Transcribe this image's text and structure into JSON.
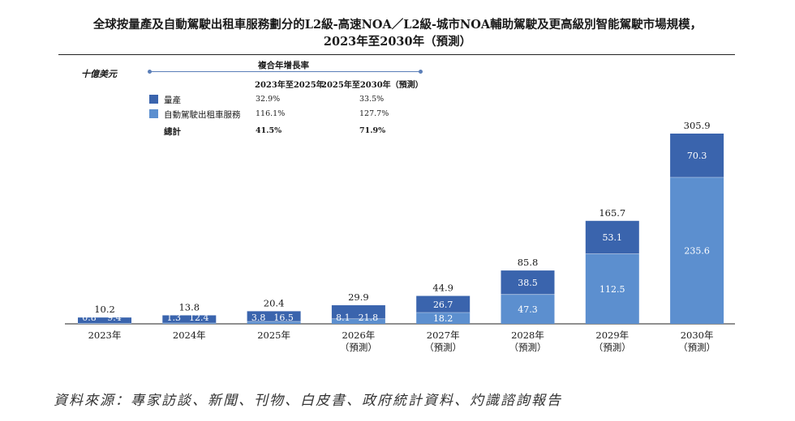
{
  "title_line1": "全球按量產及自動駕駛出租車服務劃分的L2級-高速NOA／L2級-城市NOA輔助駕駛及更高級別智能駕駛市場規模，",
  "title_line2": "2023年至2030年（預測）",
  "unit": "十億美元",
  "legend": {
    "cagr_header": "複合年增長率",
    "col1": "2023年至2025年",
    "col2": "2025年至2030年（預測）",
    "rows": [
      {
        "label": "量產",
        "color": "#3a64ad",
        "c1": "32.9%",
        "c2": "33.5%"
      },
      {
        "label": "自動駕駛出租車服務",
        "color": "#5c8fcf",
        "c1": "116.1%",
        "c2": "127.7%"
      }
    ],
    "total": {
      "label": "總計",
      "c1": "41.5%",
      "c2": "71.9%"
    }
  },
  "source": "資料來源：專家訪談、新聞、刊物、白皮書、政府統計資料、灼識諮詢報告",
  "chart_data": {
    "type": "bar",
    "stacked": true,
    "categories": [
      "2023年",
      "2024年",
      "2025年",
      "2026年\n（預測）",
      "2027年\n（預測）",
      "2028年\n（預測）",
      "2029年\n（預測）",
      "2030年\n（預測）"
    ],
    "series": [
      {
        "name": "自動駕駛出租車服務",
        "color": "#5c8fcf",
        "values": [
          0.8,
          1.3,
          3.8,
          8.1,
          18.2,
          47.3,
          112.5,
          235.6
        ]
      },
      {
        "name": "量產",
        "color": "#3a64ad",
        "values": [
          9.4,
          12.4,
          16.5,
          21.8,
          26.7,
          38.5,
          53.1,
          70.3
        ]
      }
    ],
    "totals": [
      10.2,
      13.8,
      20.4,
      29.9,
      44.9,
      85.8,
      165.7,
      305.9
    ],
    "ylim": [
      0,
      310
    ],
    "legend_position": "top-left",
    "grid": false
  }
}
